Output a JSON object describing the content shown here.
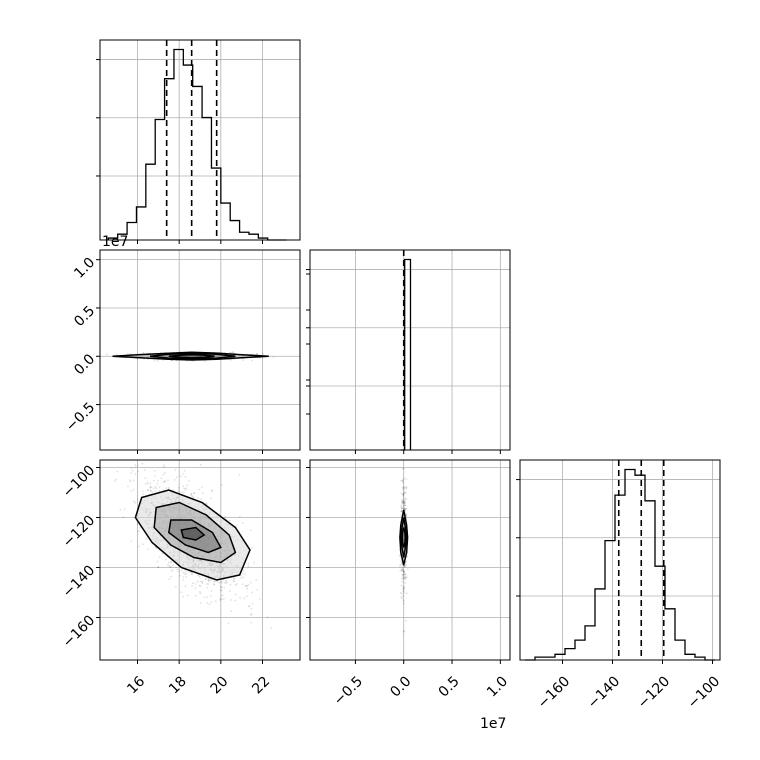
{
  "chart_data": {
    "type": "corner",
    "grid": true,
    "parameters": [
      {
        "range": [
          14.2,
          23.8
        ],
        "ticks": [
          16,
          18,
          20,
          22
        ],
        "tick_labels": [
          "16",
          "18",
          "20",
          "22"
        ],
        "offset_text": ""
      },
      {
        "range": [
          -9700000,
          11000000
        ],
        "ticks": [
          -5000000,
          0,
          5000000,
          10000000
        ],
        "tick_labels": [
          "−0.5",
          "0.0",
          "0.5",
          "1.0"
        ],
        "offset_text": "1e7"
      },
      {
        "range": [
          -177,
          -97
        ],
        "ticks": [
          -160,
          -140,
          -120,
          -100
        ],
        "tick_labels": [
          "−160",
          "−140",
          "−120",
          "−100"
        ],
        "offset_text": ""
      }
    ],
    "histograms": [
      {
        "param": 0,
        "bin_edges": [
          14.6,
          15.05,
          15.5,
          15.95,
          16.4,
          16.85,
          17.3,
          17.75,
          18.2,
          18.65,
          19.1,
          19.55,
          20.0,
          20.45,
          20.9,
          21.35,
          21.8,
          22.25,
          22.7,
          23.15
        ],
        "counts": [
          1,
          3,
          9,
          17,
          39,
          62,
          83,
          98,
          90,
          79,
          63,
          37,
          19,
          10,
          4,
          3,
          1,
          0,
          0
        ],
        "quantiles": [
          17.4,
          18.6,
          19.8
        ]
      },
      {
        "param": 1,
        "bin_edges": [
          -300000,
          100000,
          700000
        ],
        "counts": [
          0,
          98,
          0
        ],
        "quantiles": [
          0
        ]
      },
      {
        "param": 2,
        "bin_edges": [
          -175,
          -171,
          -167,
          -163,
          -159,
          -155,
          -151,
          -147,
          -143,
          -139,
          -135,
          -131,
          -127,
          -123,
          -119,
          -115,
          -111,
          -107,
          -103,
          -99
        ],
        "counts": [
          0,
          1,
          1,
          2,
          4,
          7,
          12,
          25,
          42,
          58,
          67,
          65,
          56,
          33,
          18,
          7,
          2,
          1,
          0
        ],
        "quantiles": [
          -137.5,
          -128.5,
          -119.5
        ]
      }
    ],
    "contours_2d": [
      {
        "params": [
          0,
          1
        ],
        "levels": [
          [
            [
              14.8,
              0
            ],
            [
              16,
              150000
            ],
            [
              17.5,
              320000
            ],
            [
              18.6,
              420000
            ],
            [
              19.8,
              330000
            ],
            [
              21,
              160000
            ],
            [
              22.3,
              0
            ],
            [
              21,
              -150000
            ],
            [
              19.8,
              -300000
            ],
            [
              18.6,
              -380000
            ],
            [
              17.5,
              -300000
            ],
            [
              16,
              -140000
            ]
          ],
          [
            [
              16.6,
              0
            ],
            [
              17.5,
              200000
            ],
            [
              18.6,
              290000
            ],
            [
              19.8,
              210000
            ],
            [
              20.7,
              0
            ],
            [
              19.8,
              -190000
            ],
            [
              18.6,
              -260000
            ],
            [
              17.5,
              -190000
            ]
          ],
          [
            [
              17.5,
              0
            ],
            [
              18.1,
              120000
            ],
            [
              18.6,
              160000
            ],
            [
              19.2,
              120000
            ],
            [
              19.7,
              0
            ],
            [
              19.2,
              -110000
            ],
            [
              18.6,
              -150000
            ],
            [
              18.1,
              -110000
            ]
          ]
        ]
      },
      {
        "params": [
          0,
          2
        ],
        "levels": [
          [
            [
              16.2,
              -112
            ],
            [
              17.5,
              -109
            ],
            [
              19.1,
              -114
            ],
            [
              20.7,
              -124
            ],
            [
              21.4,
              -133
            ],
            [
              20.9,
              -143
            ],
            [
              19.8,
              -145
            ],
            [
              18.1,
              -140
            ],
            [
              16.7,
              -130
            ],
            [
              15.9,
              -120
            ]
          ],
          [
            [
              16.9,
              -116
            ],
            [
              18.0,
              -114
            ],
            [
              19.3,
              -119
            ],
            [
              20.4,
              -127
            ],
            [
              20.7,
              -134
            ],
            [
              20.0,
              -138
            ],
            [
              18.7,
              -136
            ],
            [
              17.6,
              -131
            ],
            [
              16.8,
              -124
            ]
          ],
          [
            [
              17.6,
              -121
            ],
            [
              18.6,
              -121
            ],
            [
              19.6,
              -126
            ],
            [
              20.0,
              -132
            ],
            [
              19.4,
              -134
            ],
            [
              18.3,
              -131
            ],
            [
              17.5,
              -126
            ]
          ],
          [
            [
              18.1,
              -125
            ],
            [
              18.8,
              -124
            ],
            [
              19.2,
              -127
            ],
            [
              18.8,
              -129
            ],
            [
              18.2,
              -128
            ]
          ]
        ]
      },
      {
        "params": [
          1,
          2
        ],
        "levels": [
          [
            [
              0,
              -117
            ],
            [
              300000,
              -123
            ],
            [
              400000,
              -128
            ],
            [
              300000,
              -134
            ],
            [
              0,
              -139
            ],
            [
              -300000,
              -134
            ],
            [
              -400000,
              -128
            ],
            [
              -300000,
              -123
            ]
          ],
          [
            [
              0,
              -120
            ],
            [
              220000,
              -125
            ],
            [
              280000,
              -128
            ],
            [
              220000,
              -131
            ],
            [
              0,
              -136
            ],
            [
              -220000,
              -131
            ],
            [
              -280000,
              -128
            ],
            [
              -220000,
              -125
            ]
          ],
          [
            [
              0,
              -124
            ],
            [
              120000,
              -126
            ],
            [
              150000,
              -128
            ],
            [
              120000,
              -130
            ],
            [
              0,
              -132
            ],
            [
              -120000,
              -130
            ],
            [
              -150000,
              -128
            ],
            [
              -120000,
              -126
            ]
          ]
        ]
      }
    ],
    "sample_center": {
      "p0": 18.6,
      "p1": 0,
      "p2": -128
    },
    "sample_spread": {
      "p0": 1.2,
      "p1": 150000,
      "p2": 11,
      "corr_p0_p2": -0.6
    }
  }
}
